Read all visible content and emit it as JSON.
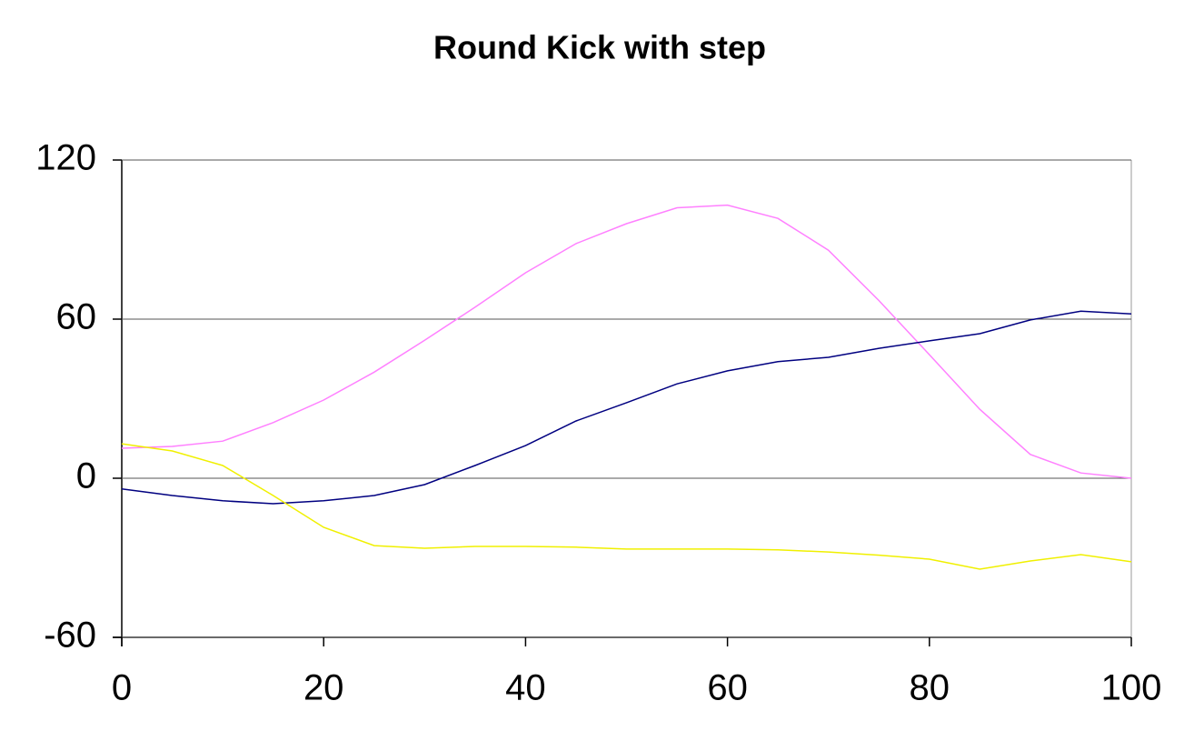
{
  "chart_data": {
    "type": "line",
    "title": "Round Kick with step",
    "x": [
      0,
      5,
      10,
      15,
      20,
      25,
      30,
      35,
      40,
      45,
      50,
      55,
      60,
      65,
      70,
      75,
      80,
      85,
      90,
      95,
      100
    ],
    "series": [
      {
        "color": "#ff80ff",
        "values": [
          11.3,
          12,
          14,
          21,
          29.5,
          40,
          52,
          64.5,
          77.5,
          88.5,
          96,
          102,
          103,
          98,
          86,
          67,
          46.6,
          26,
          9,
          2,
          0
        ]
      },
      {
        "color": "#000080",
        "values": [
          -4,
          -6.5,
          -8.5,
          -9.6,
          -8.5,
          -6.5,
          -2.4,
          4.8,
          12.3,
          21.6,
          28.5,
          35.6,
          40.5,
          44,
          45.6,
          49,
          51.8,
          54.5,
          59.7,
          63,
          62
        ]
      },
      {
        "color": "#f0f000",
        "values": [
          13,
          10.3,
          4.8,
          -6.5,
          -18.5,
          -25.4,
          -26.4,
          -25.7,
          -25.7,
          -26,
          -26.7,
          -26.7,
          -26.7,
          -27,
          -27.8,
          -29,
          -30.5,
          -34.3,
          -31.2,
          -28.8,
          -31.5
        ]
      }
    ],
    "xlim": [
      0,
      100
    ],
    "xticks": [
      0,
      20,
      40,
      60,
      80,
      100
    ],
    "ylim": [
      -60,
      120
    ],
    "yticks": [
      -60,
      0,
      60,
      120
    ],
    "grid": true
  }
}
